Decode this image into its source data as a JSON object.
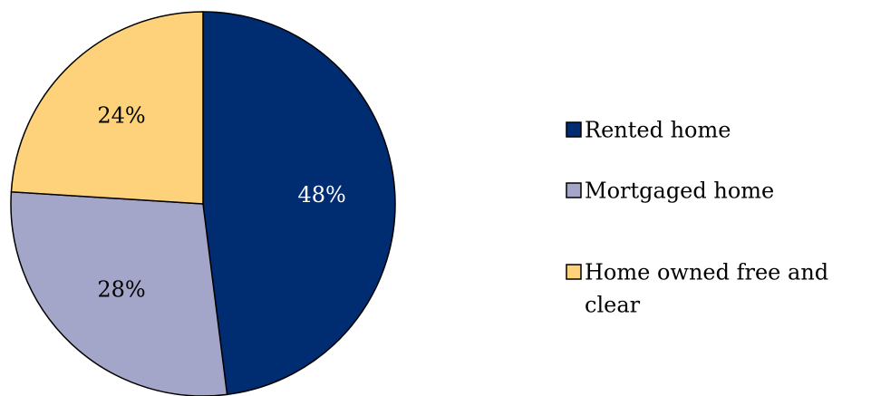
{
  "chart_data": {
    "type": "pie",
    "categories": [
      "Rented home",
      "Mortgaged home",
      "Home owned free and clear"
    ],
    "values": [
      48,
      28,
      24
    ],
    "value_labels": [
      "48%",
      "28%",
      "24%"
    ],
    "colors": [
      "#002d72",
      "#a3a6c8",
      "#fed27a"
    ],
    "label_colors": [
      "#ffffff",
      "#000000",
      "#000000"
    ],
    "legend": {
      "placement": "right",
      "items": [
        {
          "lines": [
            "Rented home"
          ],
          "color": "#002d72"
        },
        {
          "lines": [
            "Mortgaged home"
          ],
          "color": "#a3a6c8"
        },
        {
          "lines": [
            "Home owned free and",
            "clear"
          ],
          "color": "#fed27a"
        }
      ]
    },
    "title": ""
  }
}
